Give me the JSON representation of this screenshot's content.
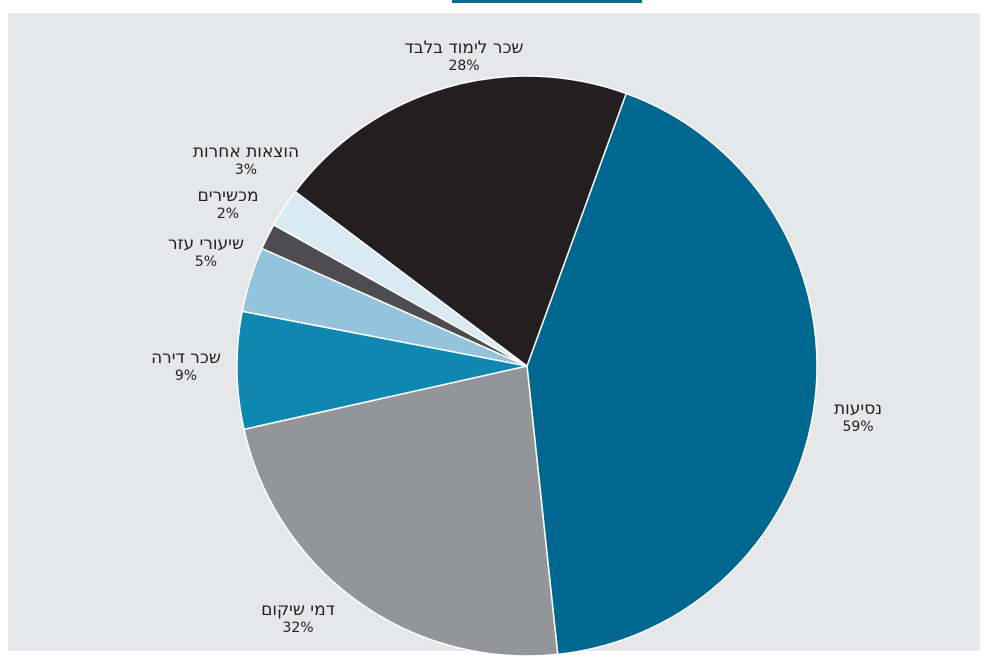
{
  "chart_data": {
    "type": "pie",
    "title": "",
    "slices": [
      {
        "label": "נסיעות",
        "value_label": "59%",
        "value": 59,
        "color": "#006790"
      },
      {
        "label": "דמי שיקום",
        "value_label": "32%",
        "value": 32,
        "color": "#939598"
      },
      {
        "label": "שכר דירה",
        "value_label": "9%",
        "value": 9,
        "color": "#0e88b1"
      },
      {
        "label": "שיעורי עזר",
        "value_label": "5%",
        "value": 5,
        "color": "#94c4db"
      },
      {
        "label": "מכשירים",
        "value_label": "2%",
        "value": 2,
        "color": "#4d4d4f"
      },
      {
        "label": "הוצאות אחרות",
        "value_label": "3%",
        "value": 3,
        "color": "#d9eaf3"
      },
      {
        "label": "שכר לימוד בלבד",
        "value_label": "28%",
        "value": 28,
        "color": "#231f20"
      }
    ]
  }
}
